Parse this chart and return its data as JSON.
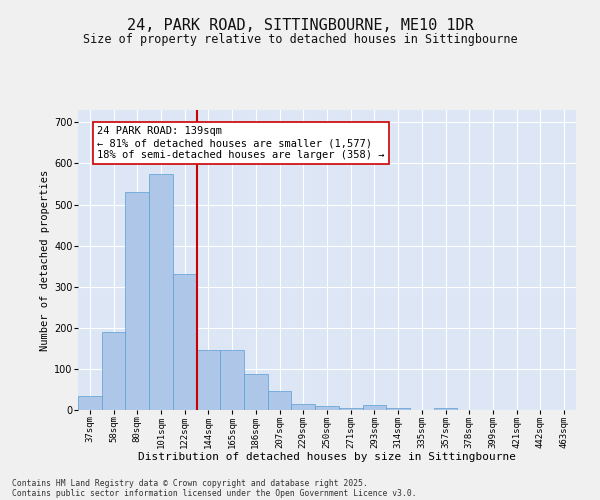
{
  "title_line1": "24, PARK ROAD, SITTINGBOURNE, ME10 1DR",
  "title_line2": "Size of property relative to detached houses in Sittingbourne",
  "xlabel": "Distribution of detached houses by size in Sittingbourne",
  "ylabel": "Number of detached properties",
  "bins": [
    "37sqm",
    "58sqm",
    "80sqm",
    "101sqm",
    "122sqm",
    "144sqm",
    "165sqm",
    "186sqm",
    "207sqm",
    "229sqm",
    "250sqm",
    "271sqm",
    "293sqm",
    "314sqm",
    "335sqm",
    "357sqm",
    "378sqm",
    "399sqm",
    "421sqm",
    "442sqm",
    "463sqm"
  ],
  "bar_values": [
    35,
    190,
    530,
    575,
    330,
    145,
    145,
    88,
    47,
    15,
    10,
    5,
    12,
    5,
    0,
    5,
    0,
    0,
    0,
    0,
    0
  ],
  "bar_color": "#aec6e8",
  "bar_edge_color": "#5a9fd4",
  "property_line_x": 4.5,
  "annotation_text": "24 PARK ROAD: 139sqm\n← 81% of detached houses are smaller (1,577)\n18% of semi-detached houses are larger (358) →",
  "vline_color": "#cc0000",
  "annotation_box_color": "#ffffff",
  "annotation_box_edge": "#cc0000",
  "ylim": [
    0,
    730
  ],
  "yticks": [
    0,
    100,
    200,
    300,
    400,
    500,
    600,
    700
  ],
  "fig_background_color": "#f0f0f0",
  "plot_background_color": "#dce6f5",
  "footer_line1": "Contains HM Land Registry data © Crown copyright and database right 2025.",
  "footer_line2": "Contains public sector information licensed under the Open Government Licence v3.0."
}
